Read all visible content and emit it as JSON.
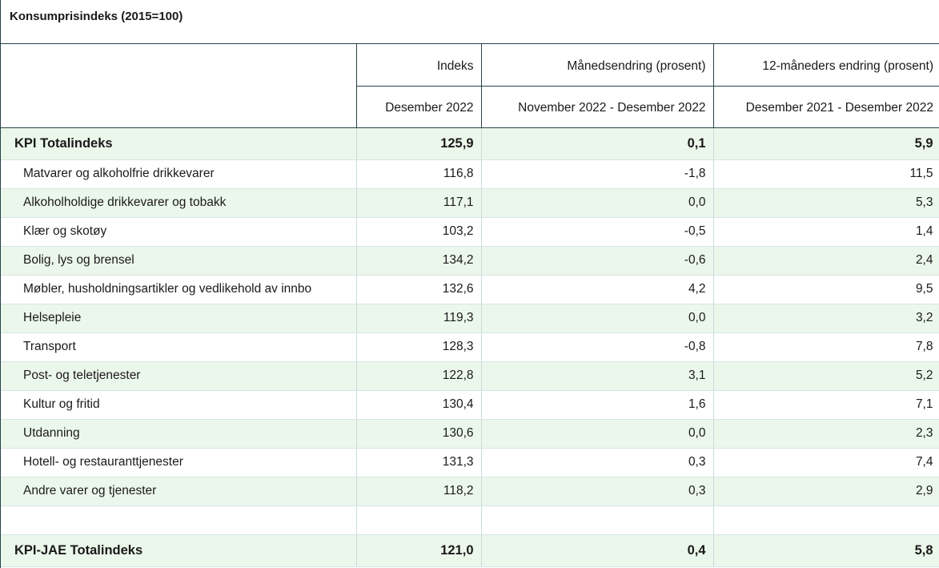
{
  "table_title": "Konsumprisindeks (2015=100)",
  "header": {
    "columns": [
      "Indeks",
      "Månedsendring (prosent)",
      "12-måneders endring (prosent)"
    ],
    "periods": [
      "Desember 2022",
      "November 2022 - Desember 2022",
      "Desember 2021 - Desember 2022"
    ]
  },
  "rows": [
    {
      "label": "KPI Totalindeks",
      "values": [
        "125,9",
        "0,1",
        "5,9"
      ]
    },
    {
      "label": "Matvarer og alkoholfrie drikkevarer",
      "values": [
        "116,8",
        "-1,8",
        "11,5"
      ]
    },
    {
      "label": "Alkoholholdige drikkevarer og tobakk",
      "values": [
        "117,1",
        "0,0",
        "5,3"
      ]
    },
    {
      "label": "Klær og skotøy",
      "values": [
        "103,2",
        "-0,5",
        "1,4"
      ]
    },
    {
      "label": "Bolig, lys og brensel",
      "values": [
        "134,2",
        "-0,6",
        "2,4"
      ]
    },
    {
      "label": "Møbler, husholdningsartikler og vedlikehold av innbo",
      "values": [
        "132,6",
        "4,2",
        "9,5"
      ]
    },
    {
      "label": "Helsepleie",
      "values": [
        "119,3",
        "0,0",
        "3,2"
      ]
    },
    {
      "label": "Transport",
      "values": [
        "128,3",
        "-0,8",
        "7,8"
      ]
    },
    {
      "label": "Post- og teletjenester",
      "values": [
        "122,8",
        "3,1",
        "5,2"
      ]
    },
    {
      "label": "Kultur og fritid",
      "values": [
        "130,4",
        "1,6",
        "7,1"
      ]
    },
    {
      "label": "Utdanning",
      "values": [
        "130,6",
        "0,0",
        "2,3"
      ]
    },
    {
      "label": "Hotell- og restauranttjenester",
      "values": [
        "131,3",
        "0,3",
        "7,4"
      ]
    },
    {
      "label": "Andre varer og tjenester",
      "values": [
        "118,2",
        "0,3",
        "2,9"
      ]
    },
    {
      "label": "KPI-JAE Totalindeks",
      "values": [
        "121,0",
        "0,4",
        "5,8"
      ]
    }
  ]
}
